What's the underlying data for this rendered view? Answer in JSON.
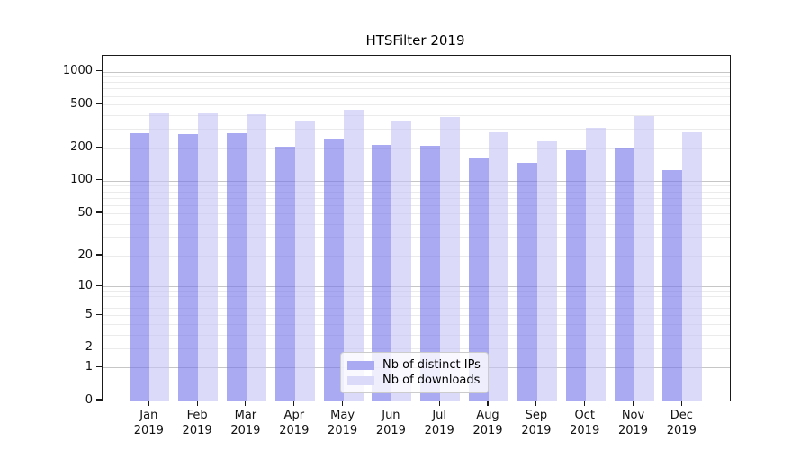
{
  "chart_data": {
    "type": "bar",
    "title": "HTSFilter 2019",
    "categories": [
      "Jan",
      "Feb",
      "Mar",
      "Apr",
      "May",
      "Jun",
      "Jul",
      "Aug",
      "Sep",
      "Oct",
      "Nov",
      "Dec"
    ],
    "x_tick_second_line": "2019",
    "series": [
      {
        "name": "Nb of distinct IPs",
        "color": "#aaaaf3",
        "bar_fill": "rgba(118,118,236,0.62)",
        "values": [
          275,
          270,
          275,
          205,
          245,
          213,
          210,
          160,
          145,
          190,
          202,
          125
        ]
      },
      {
        "name": "Nb of downloads",
        "color": "#dbdbf9",
        "bar_fill": "rgba(197,197,245,0.62)",
        "values": [
          415,
          415,
          410,
          350,
          450,
          360,
          385,
          280,
          230,
          305,
          390,
          280
        ]
      }
    ],
    "y_axis": {
      "scale": "log1p",
      "tick_values": [
        0,
        1,
        2,
        5,
        10,
        20,
        50,
        100,
        200,
        500,
        1000
      ],
      "tick_labels": [
        "0",
        "1",
        "2",
        "5",
        "10",
        "20",
        "50",
        "100",
        "200",
        "500",
        "1000"
      ],
      "major_grid_values": [
        1,
        10,
        100,
        1000
      ],
      "minor_grid_values": [
        3,
        4,
        6,
        7,
        8,
        9,
        30,
        40,
        60,
        70,
        80,
        90,
        300,
        400,
        600,
        700,
        800,
        900
      ],
      "range": [
        0,
        1390
      ]
    },
    "legend": {
      "position": "lower-center",
      "frame": true
    },
    "grid": true
  }
}
